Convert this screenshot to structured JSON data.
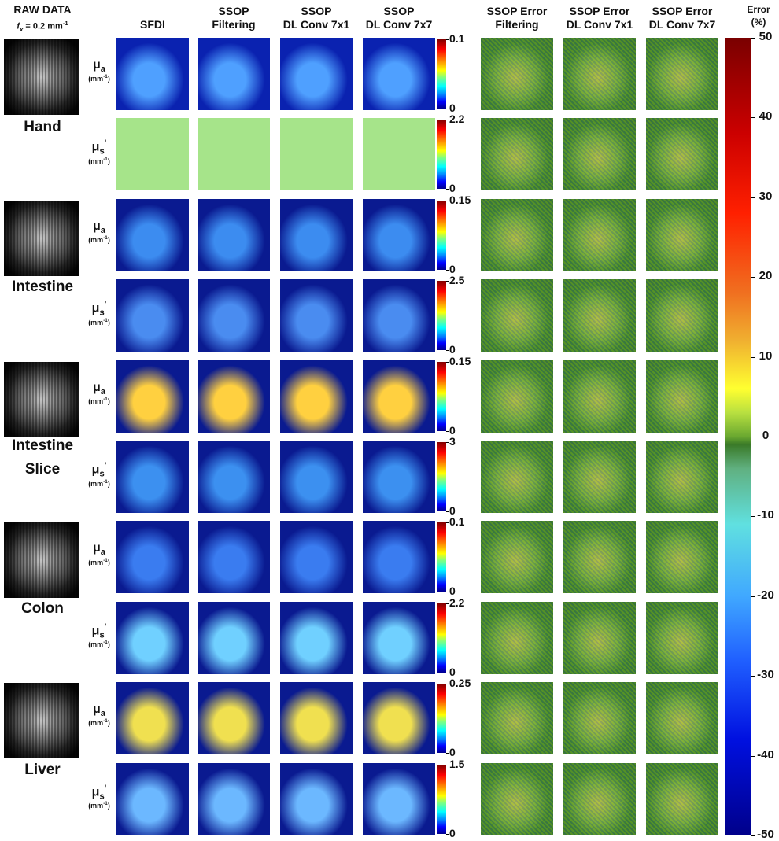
{
  "header": {
    "raw_title": "RAW DATA",
    "fx_symbol": "f",
    "fx_subscript": "x",
    "fx_value": " = 0.2 mm",
    "fx_superscript": "-1"
  },
  "columns": [
    [
      "SFDI"
    ],
    [
      "SSOP",
      "Filtering"
    ],
    [
      "SSOP",
      "DL Conv 7x1"
    ],
    [
      "SSOP",
      "DL Conv 7x7"
    ],
    [
      "SSOP Error",
      "Filtering"
    ],
    [
      "SSOP Error",
      "DL Conv 7x1"
    ],
    [
      "SSOP Error",
      "DL Conv 7x7"
    ]
  ],
  "error_colorbar": {
    "title": [
      "Error",
      "(%)"
    ],
    "ylim": [
      -50,
      50
    ],
    "ticks": [
      50,
      40,
      30,
      20,
      10,
      0,
      -10,
      -20,
      -30,
      -40,
      -50
    ]
  },
  "samples": [
    {
      "name": [
        "Hand"
      ],
      "rows": [
        {
          "symbol": "μ",
          "subscript": "a",
          "unit": "(mm",
          "unit_superscript": "-1",
          "unit_close": ")",
          "scale_max": 0.1,
          "scale_min": 0
        },
        {
          "symbol": "μ",
          "subscript": "s",
          "prime": "'",
          "unit": "(mm",
          "unit_superscript": "-1",
          "unit_close": ")",
          "scale_max": 2.2,
          "scale_min": 0
        }
      ]
    },
    {
      "name": [
        "Intestine"
      ],
      "rows": [
        {
          "symbol": "μ",
          "subscript": "a",
          "unit": "(mm",
          "unit_superscript": "-1",
          "unit_close": ")",
          "scale_max": 0.15,
          "scale_min": 0
        },
        {
          "symbol": "μ",
          "subscript": "s",
          "prime": "'",
          "unit": "(mm",
          "unit_superscript": "-1",
          "unit_close": ")",
          "scale_max": 2.5,
          "scale_min": 0
        }
      ]
    },
    {
      "name": [
        "Intestine",
        "Slice"
      ],
      "rows": [
        {
          "symbol": "μ",
          "subscript": "a",
          "unit": "(mm",
          "unit_superscript": "-1",
          "unit_close": ")",
          "scale_max": 0.15,
          "scale_min": 0
        },
        {
          "symbol": "μ",
          "subscript": "s",
          "prime": "'",
          "unit": "(mm",
          "unit_superscript": "-1",
          "unit_close": ")",
          "scale_max": 3,
          "scale_min": 0
        }
      ]
    },
    {
      "name": [
        "Colon"
      ],
      "rows": [
        {
          "symbol": "μ",
          "subscript": "a",
          "unit": "(mm",
          "unit_superscript": "-1",
          "unit_close": ")",
          "scale_max": 0.1,
          "scale_min": 0
        },
        {
          "symbol": "μ",
          "subscript": "s",
          "prime": "'",
          "unit": "(mm",
          "unit_superscript": "-1",
          "unit_close": ")",
          "scale_max": 2.2,
          "scale_min": 0
        }
      ]
    },
    {
      "name": [
        "Liver"
      ],
      "rows": [
        {
          "symbol": "μ",
          "subscript": "a",
          "unit": "(mm",
          "unit_superscript": "-1",
          "unit_close": ")",
          "scale_max": 0.25,
          "scale_min": 0
        },
        {
          "symbol": "μ",
          "subscript": "s",
          "prime": "'",
          "unit": "(mm",
          "unit_superscript": "-1",
          "unit_close": ")",
          "scale_max": 1.5,
          "scale_min": 0
        }
      ]
    }
  ]
}
